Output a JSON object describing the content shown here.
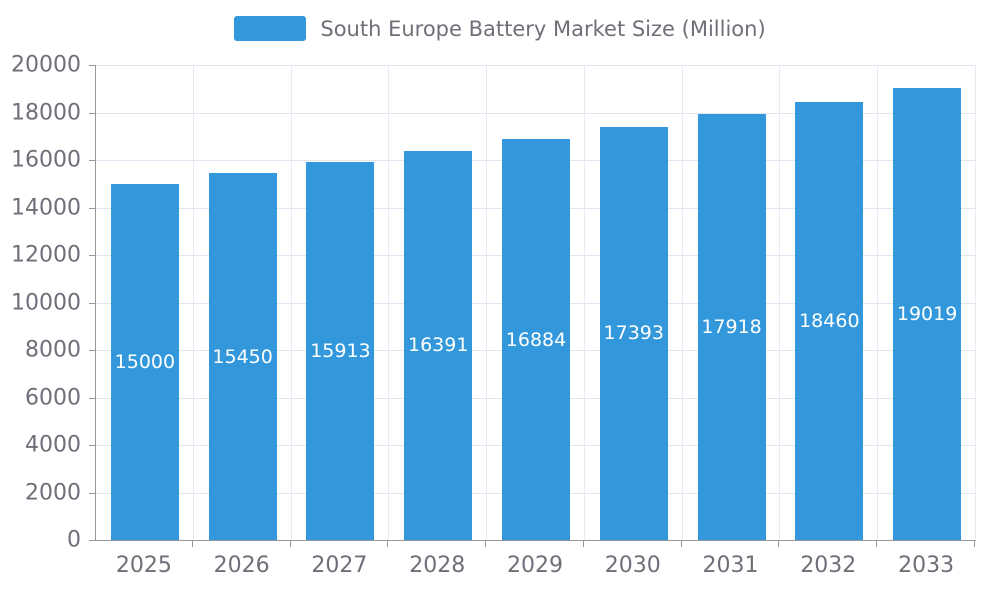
{
  "chart_data": {
    "type": "bar",
    "title": "South Europe Battery Market Size (Million)",
    "series_name": "South Europe Battery Market Size (Million)",
    "categories": [
      "2025",
      "2026",
      "2027",
      "2028",
      "2029",
      "2030",
      "2031",
      "2032",
      "2033"
    ],
    "values": [
      15000,
      15450,
      15913,
      16391,
      16884,
      17393,
      17918,
      18460,
      19019
    ],
    "xlabel": "",
    "ylabel": "",
    "ylim": [
      0,
      20000
    ],
    "ytick_step": 2000,
    "ytick_labels": [
      "0",
      "2000",
      "4000",
      "6000",
      "8000",
      "10000",
      "12000",
      "14000",
      "16000",
      "18000",
      "20000"
    ],
    "grid": true,
    "legend_position": "top",
    "colors": {
      "bar": "#3398DB",
      "bar_value_label": "#ffffff",
      "axis_line": "#999999",
      "grid_line": "#e0e6f1",
      "tick_text": "#6e7079",
      "legend_text": "#6e7079",
      "background": "#ffffff"
    },
    "value_label_position": "inside-center"
  }
}
